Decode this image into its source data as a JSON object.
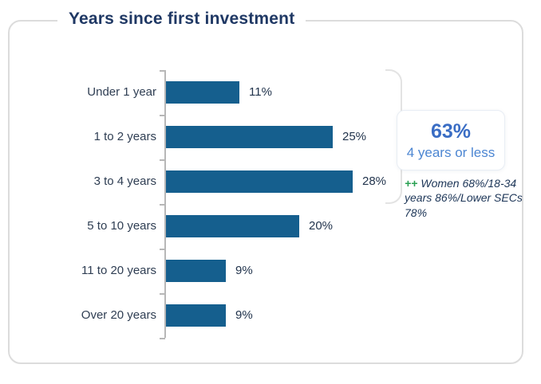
{
  "card": {
    "title": "Years since first investment"
  },
  "chart_data": {
    "type": "bar",
    "orientation": "horizontal",
    "title": "Years since first investment",
    "categories": [
      "Under 1 year",
      "1 to 2 years",
      "3 to 4 years",
      "5 to 10 years",
      "11 to 20 years",
      "Over 20 years"
    ],
    "values": [
      11,
      25,
      28,
      20,
      9,
      9
    ],
    "value_labels": [
      "11%",
      "25%",
      "28%",
      "20%",
      "9%",
      "9%"
    ],
    "xlabel": "",
    "ylabel": "",
    "xlim": [
      0,
      30
    ],
    "grid": false,
    "legend": false,
    "bar_color": "#155f8e",
    "axis_color": "#b7b7b7",
    "annotations": [
      {
        "text": "63% 4 years or less",
        "applies_to": [
          "Under 1 year",
          "1 to 2 years",
          "3 to 4 years"
        ]
      }
    ]
  },
  "callout": {
    "headline": "63%",
    "subline": "4 years or less",
    "note": {
      "prefix": "++",
      "line1": "Women 68%/18-34",
      "line2": "years 86%/Lower SECs",
      "line3": "78%"
    }
  },
  "colors": {
    "title": "#1f3864",
    "bar": "#155f8e",
    "callout_headline": "#3a6dc4",
    "callout_subline": "#4c86d2",
    "note_text": "#1c3557",
    "note_prefix_green": "#29a052",
    "card_border": "#dcdcdc",
    "bracket": "#e3e3e3"
  }
}
